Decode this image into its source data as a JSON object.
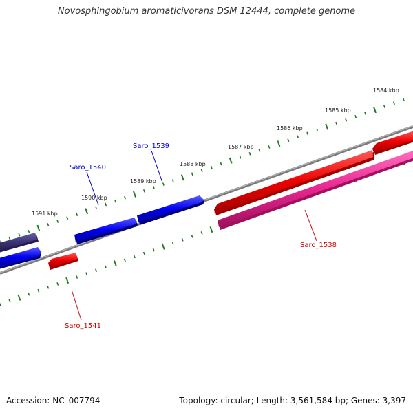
{
  "title": "Novosphingobium aromaticivorans DSM 12444, complete genome",
  "footer": {
    "accession": "Accession: NC_007794",
    "stats": "Topology: circular; Length: 3,561,584 bp; Genes: 3,397"
  },
  "colors": {
    "backbone": "#808080",
    "tick_marks": "#1a7f1a",
    "forward_strand": "#0000ee",
    "reverse_strand": "#ee0000",
    "pink_feature": "#e8268f",
    "navy_feature": "#3d3577",
    "forward_label": "#0000cc",
    "reverse_label": "#cc0000"
  },
  "ticks": [
    {
      "label": "1584 kbp"
    },
    {
      "label": "1585 kbp"
    },
    {
      "label": "1586 kbp"
    },
    {
      "label": "1587 kbp"
    },
    {
      "label": "1588 kbp"
    },
    {
      "label": "1589 kbp"
    },
    {
      "label": "1590 kbp"
    },
    {
      "label": "1591 kbp"
    }
  ],
  "genes": [
    {
      "name": "Saro_1538",
      "strand": "reverse",
      "label": "Saro_1538"
    },
    {
      "name": "Saro_1539",
      "strand": "forward",
      "label": "Saro_1539"
    },
    {
      "name": "Saro_1540",
      "strand": "forward",
      "label": "Saro_1540"
    },
    {
      "name": "Saro_1541",
      "strand": "reverse",
      "label": "Saro_1541"
    }
  ]
}
